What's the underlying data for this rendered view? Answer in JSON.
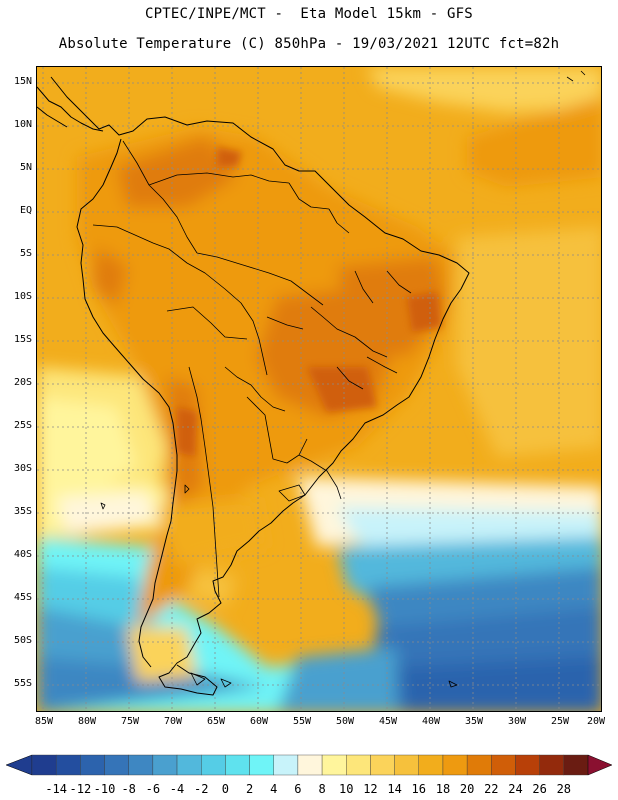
{
  "header": {
    "line1": "CPTEC/INPE/MCT -  Eta Model 15km - GFS",
    "line2": "Absolute Temperature (C) 850hPa - 19/03/2021 12UTC fct=82h"
  },
  "map": {
    "lat_ticks": [
      "15N",
      "10N",
      "5N",
      "EQ",
      "5S",
      "10S",
      "15S",
      "20S",
      "25S",
      "30S",
      "35S",
      "40S",
      "45S",
      "50S",
      "55S"
    ],
    "lon_ticks": [
      "85W",
      "80W",
      "75W",
      "70W",
      "65W",
      "60W",
      "55W",
      "50W",
      "45W",
      "40W",
      "35W",
      "30W",
      "25W",
      "20W"
    ],
    "colors": {
      "frame": "#000000",
      "grid": "#8a8a8a",
      "coast": "#000000"
    }
  },
  "colorbar": {
    "labels": [
      "-14",
      "-12",
      "-10",
      "-8",
      "-6",
      "-4",
      "-2",
      "0",
      "2",
      "4",
      "6",
      "8",
      "10",
      "12",
      "14",
      "16",
      "18",
      "20",
      "22",
      "24",
      "26",
      "28"
    ],
    "colors": [
      "#1f3d8f",
      "#234e9f",
      "#2c63ad",
      "#3574b8",
      "#3e87c2",
      "#4aa0cf",
      "#52b8dc",
      "#55cde6",
      "#5fe2ee",
      "#6ff4f7",
      "#c8f3fa",
      "#fff6dc",
      "#fff59c",
      "#fde67a",
      "#fbd35a",
      "#f6c13c",
      "#f2ad1c",
      "#ee9a10",
      "#e07b08",
      "#d05e08",
      "#b84008",
      "#932a0c",
      "#6a1c12"
    ]
  }
}
